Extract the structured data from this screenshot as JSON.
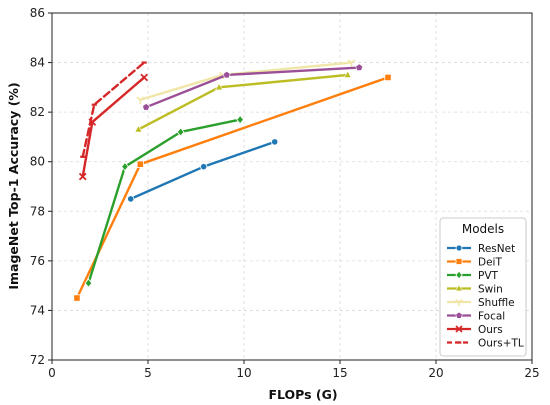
{
  "chart_data": {
    "type": "line",
    "title": "",
    "xlabel": "FLOPs (G)",
    "ylabel": "ImageNet Top-1 Accuracy (%)",
    "xlim": [
      0,
      25
    ],
    "ylim": [
      72,
      86
    ],
    "xticks": [
      0,
      5,
      10,
      15,
      20,
      25
    ],
    "yticks": [
      72,
      74,
      76,
      78,
      80,
      82,
      84,
      86
    ],
    "grid": true,
    "legend": {
      "title": "Models",
      "placement": "bottom-right"
    },
    "series": [
      {
        "name": "ResNet",
        "color": "#1f77b4",
        "marker": "circle",
        "dash": "solid",
        "points": [
          {
            "x": 4.1,
            "y": 78.5
          },
          {
            "x": 7.9,
            "y": 79.8
          },
          {
            "x": 11.6,
            "y": 80.8
          }
        ]
      },
      {
        "name": "DeiT",
        "color": "#ff7f0e",
        "marker": "square",
        "dash": "solid",
        "points": [
          {
            "x": 1.3,
            "y": 74.5
          },
          {
            "x": 4.6,
            "y": 79.9
          },
          {
            "x": 17.5,
            "y": 83.4
          }
        ]
      },
      {
        "name": "PVT",
        "color": "#2ca02c",
        "marker": "diamond",
        "dash": "solid",
        "points": [
          {
            "x": 1.9,
            "y": 75.1
          },
          {
            "x": 3.8,
            "y": 79.8
          },
          {
            "x": 6.7,
            "y": 81.2
          },
          {
            "x": 9.8,
            "y": 81.7
          }
        ]
      },
      {
        "name": "Swin",
        "color": "#bcbd22",
        "marker": "triangle",
        "dash": "solid",
        "points": [
          {
            "x": 4.5,
            "y": 81.3
          },
          {
            "x": 8.7,
            "y": 83.0
          },
          {
            "x": 15.4,
            "y": 83.5
          }
        ]
      },
      {
        "name": "Shuffle",
        "color": "#f0e6a8",
        "marker": "y-marker",
        "dash": "solid",
        "points": [
          {
            "x": 4.6,
            "y": 82.5
          },
          {
            "x": 8.9,
            "y": 83.5
          },
          {
            "x": 15.6,
            "y": 84.0
          }
        ]
      },
      {
        "name": "Focal",
        "color": "#9b4f96",
        "marker": "pentagon",
        "dash": "solid",
        "points": [
          {
            "x": 4.9,
            "y": 82.2
          },
          {
            "x": 9.1,
            "y": 83.5
          },
          {
            "x": 16.0,
            "y": 83.8
          }
        ]
      },
      {
        "name": "Ours",
        "color": "#d62728",
        "marker": "x",
        "dash": "solid",
        "points": [
          {
            "x": 1.6,
            "y": 79.4
          },
          {
            "x": 2.1,
            "y": 81.6
          },
          {
            "x": 4.8,
            "y": 83.4
          }
        ]
      },
      {
        "name": "Ours+TL",
        "color": "#d62728",
        "marker": "dash-x",
        "dash": "dashed",
        "points": [
          {
            "x": 1.6,
            "y": 80.2
          },
          {
            "x": 2.2,
            "y": 82.3
          },
          {
            "x": 4.8,
            "y": 84.0
          }
        ]
      }
    ]
  }
}
